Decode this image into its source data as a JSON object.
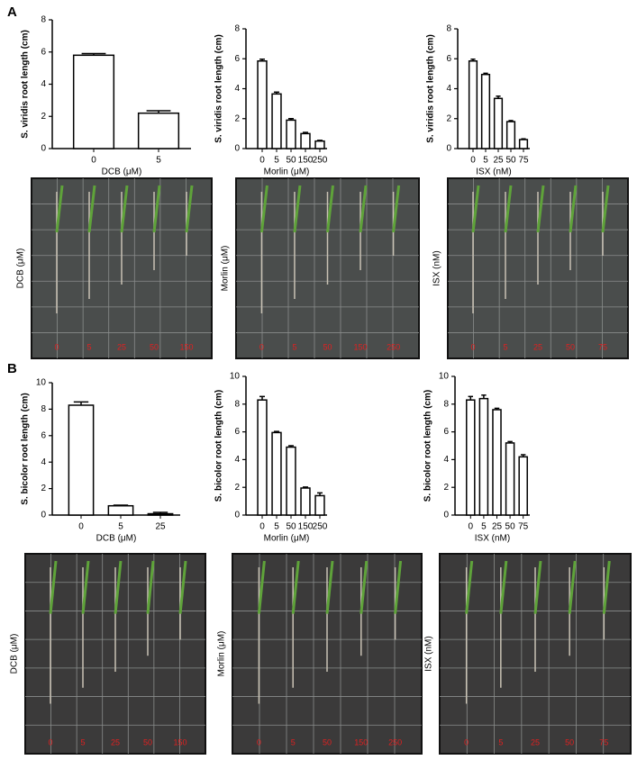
{
  "panels": [
    "A",
    "B"
  ],
  "chart_data": [
    {
      "type": "bar",
      "x_label": "DCB (μM)",
      "y_label": "S. viridis root length (cm)",
      "categories": [
        "0",
        "5"
      ],
      "values": [
        5.8,
        2.2
      ],
      "errors": [
        0.1,
        0.15
      ],
      "ylim": [
        0,
        8
      ],
      "yticks": [
        0,
        2,
        4,
        6,
        8
      ],
      "color": "#ffffff",
      "edge_color": "#000000"
    },
    {
      "type": "bar",
      "x_label": "Morlin (μM)",
      "y_label": "S. viridis root length (cm)",
      "categories": [
        "0",
        "5",
        "50",
        "150",
        "250"
      ],
      "values": [
        5.85,
        3.65,
        1.9,
        1.0,
        0.5
      ],
      "errors": [
        0.12,
        0.12,
        0.1,
        0.08,
        0.05
      ],
      "ylim": [
        0,
        8
      ],
      "yticks": [
        0,
        2,
        4,
        6,
        8
      ],
      "color": "#ffffff",
      "edge_color": "#000000"
    },
    {
      "type": "bar",
      "x_label": "ISX (nM)",
      "y_label": "S. viridis root length (cm)",
      "categories": [
        "0",
        "5",
        "25",
        "50",
        "75"
      ],
      "values": [
        5.85,
        4.95,
        3.35,
        1.8,
        0.6
      ],
      "errors": [
        0.12,
        0.08,
        0.15,
        0.07,
        0.05
      ],
      "ylim": [
        0,
        8
      ],
      "yticks": [
        0,
        2,
        4,
        6,
        8
      ],
      "color": "#ffffff",
      "edge_color": "#000000"
    },
    {
      "type": "bar",
      "x_label": "DCB (μM)",
      "y_label": "S. bicolor root length (cm)",
      "categories": [
        "0",
        "5",
        "25"
      ],
      "values": [
        8.3,
        0.7,
        0.1
      ],
      "errors": [
        0.25,
        0.05,
        0.1
      ],
      "ylim": [
        0,
        10
      ],
      "yticks": [
        0,
        2,
        4,
        6,
        8,
        10
      ],
      "color": "#ffffff",
      "edge_color": "#000000"
    },
    {
      "type": "bar",
      "x_label": "Morlin (μM)",
      "y_label": "S. bicolor root length (cm)",
      "categories": [
        "0",
        "5",
        "50",
        "150",
        "250"
      ],
      "values": [
        8.3,
        5.95,
        4.9,
        1.95,
        1.4
      ],
      "errors": [
        0.25,
        0.08,
        0.1,
        0.07,
        0.2
      ],
      "ylim": [
        0,
        10
      ],
      "yticks": [
        0,
        2,
        4,
        6,
        8,
        10
      ],
      "color": "#ffffff",
      "edge_color": "#000000"
    },
    {
      "type": "bar",
      "x_label": "ISX (nM)",
      "y_label": "S. bicolor root length (cm)",
      "categories": [
        "0",
        "5",
        "25",
        "50",
        "75"
      ],
      "values": [
        8.3,
        8.4,
        7.6,
        5.2,
        4.2
      ],
      "errors": [
        0.25,
        0.25,
        0.1,
        0.1,
        0.15
      ],
      "ylim": [
        0,
        10
      ],
      "yticks": [
        0,
        2,
        4,
        6,
        8,
        10
      ],
      "color": "#ffffff",
      "edge_color": "#000000"
    }
  ],
  "photos": [
    {
      "side_label": "DCB (μM)",
      "lane_labels": [
        "0",
        "5",
        "25",
        "50",
        "150"
      ]
    },
    {
      "side_label": "Morlin (μM)",
      "lane_labels": [
        "0",
        "5",
        "50",
        "150",
        "250"
      ]
    },
    {
      "side_label": "ISX (nM)",
      "lane_labels": [
        "0",
        "5",
        "25",
        "50",
        "75"
      ]
    },
    {
      "side_label": "DCB (μM)",
      "lane_labels": [
        "0",
        "5",
        "25",
        "50",
        "150"
      ]
    },
    {
      "side_label": "Morlin (μM)",
      "lane_labels": [
        "0",
        "5",
        "50",
        "150",
        "250"
      ]
    },
    {
      "side_label": "ISX (nM)",
      "lane_labels": [
        "0",
        "5",
        "25",
        "50",
        "75"
      ]
    }
  ]
}
